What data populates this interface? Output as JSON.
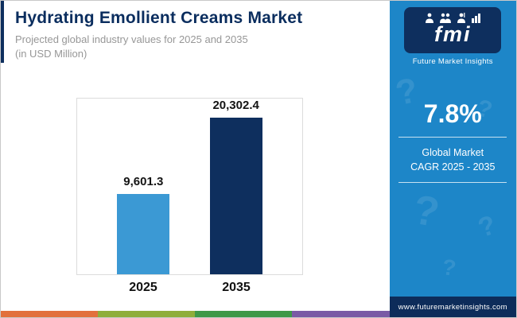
{
  "header": {
    "title": "Hydrating Emollient Creams Market",
    "subtitle_line1": "Projected global industry values for 2025 and 2035",
    "subtitle_line2": "(in USD Million)"
  },
  "chart_data": {
    "type": "bar",
    "title": "Hydrating Emollient Creams Market",
    "subtitle": "Projected global industry values for 2025 and 2035 (in USD Million)",
    "categories": [
      "2025",
      "2035"
    ],
    "values": [
      9601.3,
      20302.4
    ],
    "value_labels": [
      "9,601.3",
      "20,302.4"
    ],
    "xlabel": "",
    "ylabel": "",
    "ylim": [
      0,
      21000
    ],
    "grid": false,
    "legend": false,
    "bar_colors": [
      "#3b99d4",
      "#0e2f5e"
    ]
  },
  "sidebar": {
    "logo_text": "fmi",
    "logo_name": "Future Market Insights",
    "cagr_value": "7.8%",
    "cagr_label_line1": "Global Market",
    "cagr_label_line2": "CAGR 2025 - 2035",
    "website": "www.futuremarketinsights.com",
    "bg_color": "#1d86c8",
    "accent_color": "#0e2f5e",
    "pattern_glyph": "?"
  },
  "footer": {
    "stripe_colors": [
      "#e2703c",
      "#8fae3a",
      "#3e9948",
      "#7a5aa5"
    ]
  }
}
